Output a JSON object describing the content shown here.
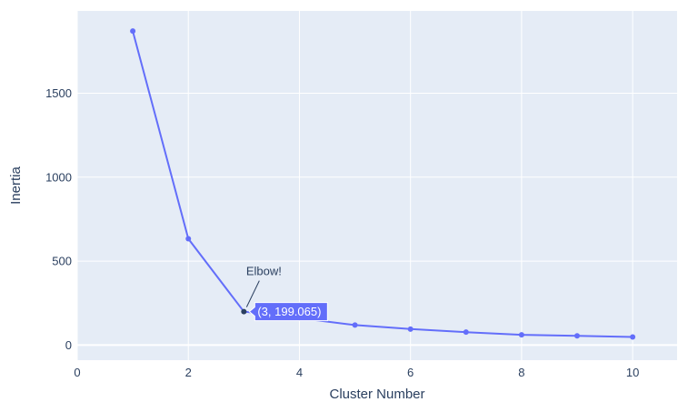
{
  "chart_data": {
    "type": "line",
    "title": "",
    "xlabel": "Cluster Number",
    "ylabel": "Inertia",
    "xlim": [
      0,
      10.8
    ],
    "ylim": [
      -90,
      1990
    ],
    "x_ticks": [
      0,
      2,
      4,
      6,
      8,
      10
    ],
    "y_ticks": [
      0,
      500,
      1000,
      1500
    ],
    "grid": true,
    "legend": "none",
    "series": [
      {
        "x": [
          1,
          2,
          3,
          4,
          5,
          6,
          7,
          8,
          9,
          10
        ],
        "y": [
          1870,
          633,
          199.065,
          160,
          119,
          95,
          77,
          61,
          55,
          48
        ],
        "color": "#636efa",
        "mode": "lines+markers"
      }
    ],
    "annotations": [
      {
        "text": "Elbow!",
        "x": 3,
        "y": 199.065
      }
    ],
    "hover_label": {
      "text": "(3, 199.065)",
      "x": 3,
      "y": 199.065,
      "color": "#636efa"
    },
    "colors": {
      "plot_bg": "#e5ecf6",
      "grid": "#ffffff",
      "text": "#2a3f5f",
      "highlight_point": "#2a3f5f"
    }
  }
}
